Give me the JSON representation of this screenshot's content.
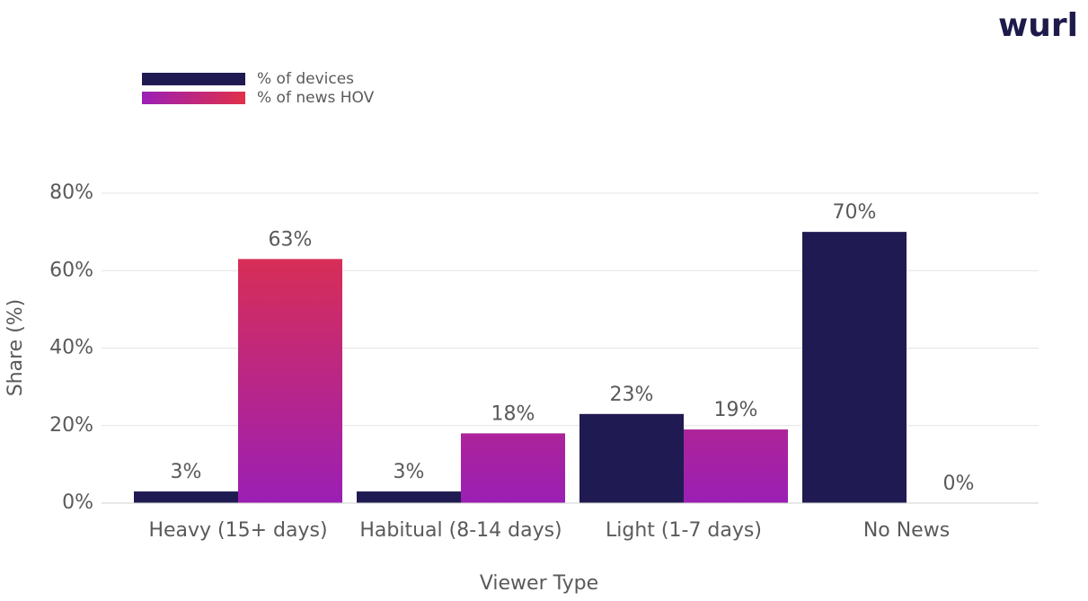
{
  "logo": "wurl",
  "chart_data": {
    "type": "bar",
    "categories": [
      "Heavy (15+ days)",
      "Habitual (8-14 days)",
      "Light (1-7 days)",
      "No News"
    ],
    "series": [
      {
        "name": "% of devices",
        "color": "#201a52",
        "values": [
          3,
          3,
          23,
          70
        ],
        "value_labels": [
          "3%",
          "3%",
          "23%",
          "70%"
        ]
      },
      {
        "name": "% of news HOV",
        "color": "#9b1fb5",
        "gradient_to": "#e0304a",
        "values": [
          63,
          18,
          19,
          0
        ],
        "value_labels": [
          "63%",
          "18%",
          "19%",
          "0%"
        ]
      }
    ],
    "x_label": "Viewer Type",
    "y_label": "Share (%)",
    "ylim": [
      0,
      80
    ],
    "yticks": [
      {
        "value": 0,
        "label": "0%"
      },
      {
        "value": 20,
        "label": "20%"
      },
      {
        "value": 40,
        "label": "40%"
      },
      {
        "value": 60,
        "label": "60%"
      },
      {
        "value": 80,
        "label": "80%"
      }
    ],
    "grid": true
  }
}
